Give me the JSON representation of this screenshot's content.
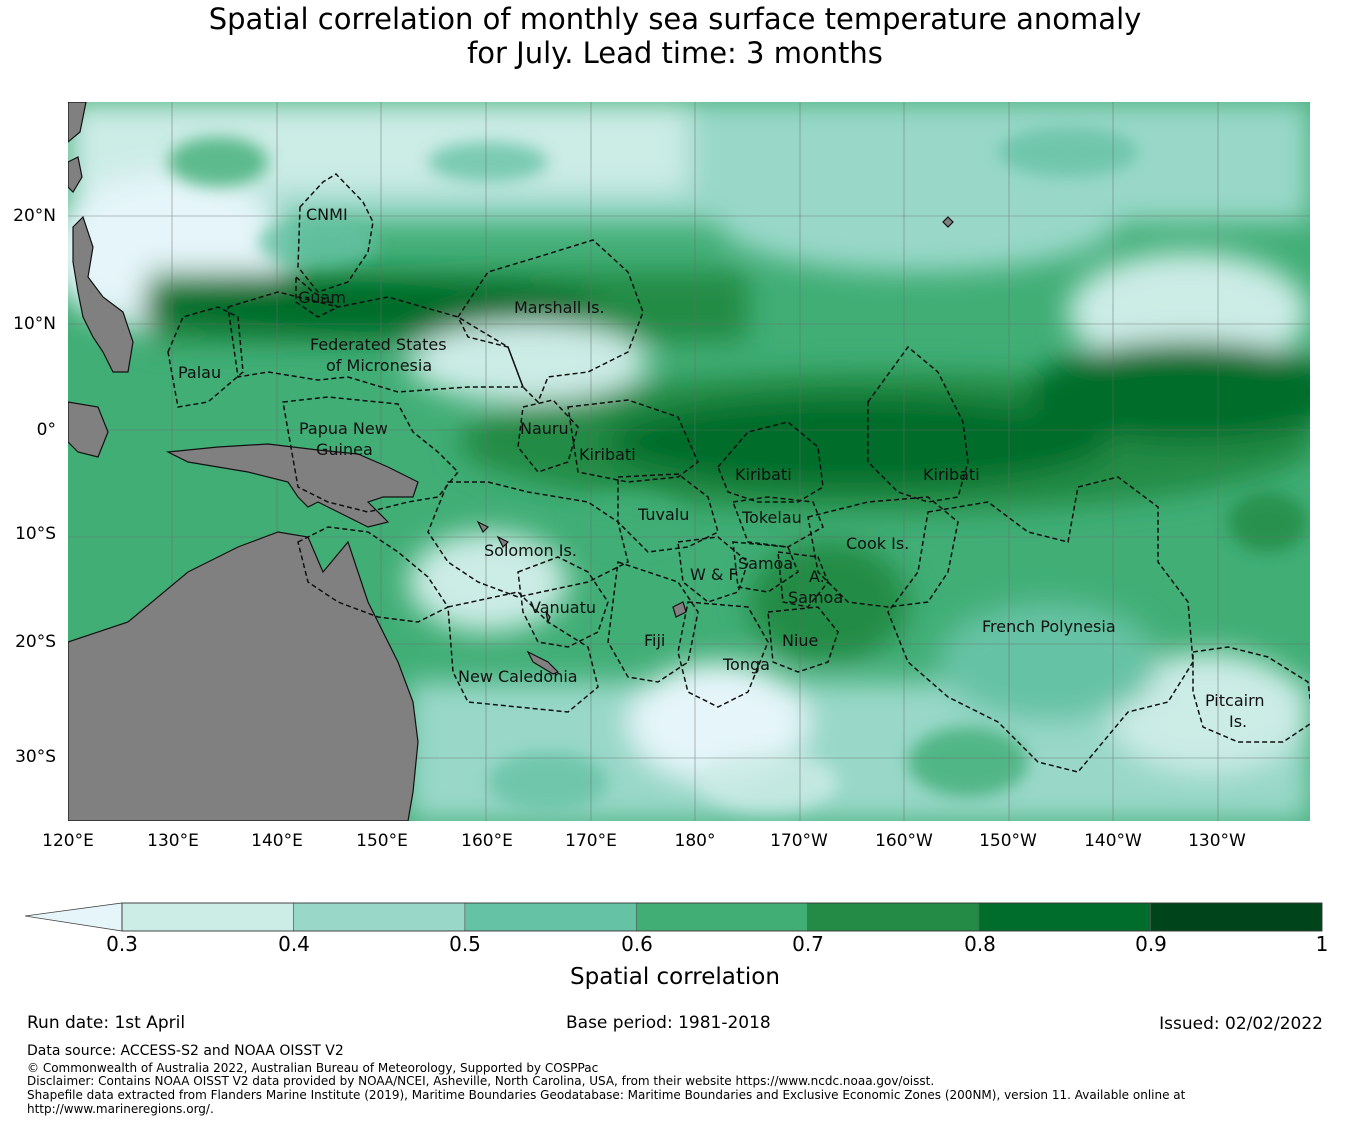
{
  "title": {
    "line1": "Spatial correlation of monthly sea surface temperature anomaly",
    "line2": "for July. Lead time: 3 months"
  },
  "map": {
    "lat_ticks": [
      "20°N",
      "10°N",
      "0°",
      "10°S",
      "20°S",
      "30°S"
    ],
    "lon_ticks": [
      "120°E",
      "130°E",
      "140°E",
      "150°E",
      "160°E",
      "170°E",
      "180°",
      "170°W",
      "160°W",
      "150°W",
      "140°W",
      "130°W"
    ],
    "land_color": "#808080",
    "regions": {
      "cnmi": "CNMI",
      "guam": "Guam",
      "marshall": "Marshall Is.",
      "fsm_1": "Federated States",
      "fsm_2": "of Micronesia",
      "palau": "Palau",
      "png_1": "Papua New",
      "png_2": "Guinea",
      "nauru": "Nauru",
      "kiribati_w": "Kiribati",
      "kiribati_c": "Kiribati",
      "kiribati_e": "Kiribati",
      "tuvalu": "Tuvalu",
      "tokelau": "Tokelau",
      "solomon": "Solomon Is.",
      "samoa": "Samoa",
      "wf": "W & F",
      "as_1": "A.",
      "as_2": "Samoa",
      "cook": "Cook Is.",
      "vanuatu": "Vanuatu",
      "fiji": "Fiji",
      "niue": "Niue",
      "tonga": "Tonga",
      "french_polynesia": "French Polynesia",
      "new_caledonia": "New Caledonia",
      "pitcairn_1": "Pitcairn",
      "pitcairn_2": "Is."
    }
  },
  "colorbar": {
    "label": "Spatial correlation",
    "ticks": [
      "0.3",
      "0.4",
      "0.5",
      "0.6",
      "0.7",
      "0.8",
      "0.9",
      "1"
    ],
    "colors": [
      "#e5f5f9",
      "#ccece6",
      "#99d8c9",
      "#66c2a4",
      "#41ae76",
      "#238b45",
      "#006d2c",
      "#00441b"
    ]
  },
  "footer": {
    "run_date": "Run date: 1st April",
    "base_period": "Base period: 1981-2018",
    "issued": "Issued: 02/02/2022",
    "data_source": "Data source: ACCESS-S2 and NOAA OISST V2",
    "copyright": "© Commonwealth of Australia 2022, Australian Bureau of Meteorology, Supported by COSPPac",
    "disclaimer": "Disclaimer: Contains NOAA OISST V2 data provided by NOAA/NCEI, Asheville, North Carolina, USA, from their website https://www.ncdc.noaa.gov/oisst.",
    "shapefile_1": "Shapefile data extracted from Flanders Marine Institute (2019), Maritime Boundaries Geodatabase: Maritime Boundaries and Exclusive Economic Zones (200NM), version 11. Available online at",
    "shapefile_2": "http://www.marineregions.org/."
  }
}
